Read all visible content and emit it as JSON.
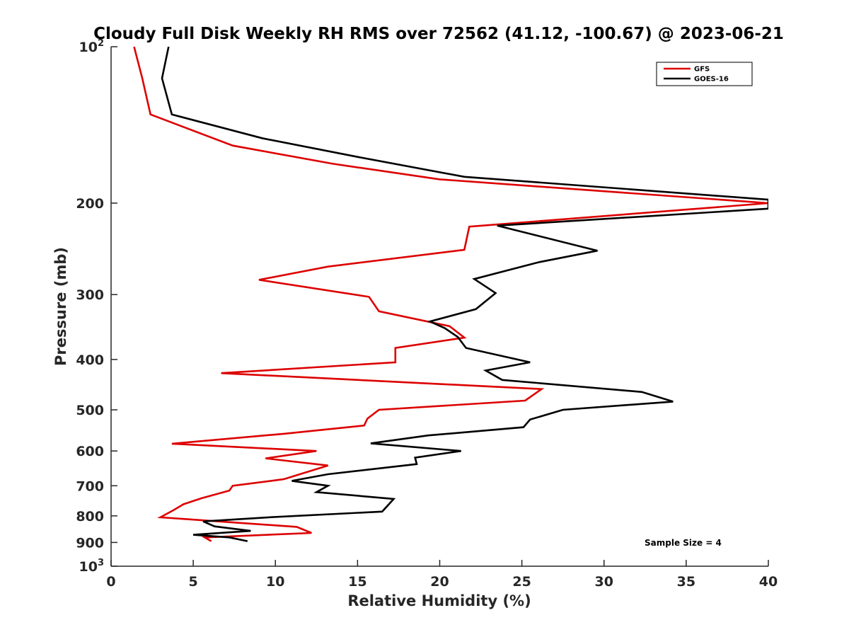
{
  "chart_data": {
    "type": "line",
    "title": "Cloudy Full Disk Weekly RH RMS over 72562 (41.12, -100.67) @ 2023-06-21",
    "xlabel": "Relative Humidity (%)",
    "ylabel": "Pressure (mb)",
    "xlim": [
      0,
      40
    ],
    "ylim": [
      100,
      1000
    ],
    "y_scale": "log",
    "y_reversed": true,
    "grid": false,
    "legend_position": "top-right",
    "x_ticks": [
      "0",
      "5",
      "10",
      "15",
      "20",
      "25",
      "30",
      "35",
      "40"
    ],
    "y_ticks": [
      {
        "value": 100,
        "base": "10",
        "exp": "2"
      },
      {
        "value": 200,
        "label": "200"
      },
      {
        "value": 300,
        "label": "300"
      },
      {
        "value": 400,
        "label": "400"
      },
      {
        "value": 500,
        "label": "500"
      },
      {
        "value": 600,
        "label": "600"
      },
      {
        "value": 700,
        "label": "700"
      },
      {
        "value": 800,
        "label": "800"
      },
      {
        "value": 900,
        "label": "900"
      },
      {
        "value": 1000,
        "base": "10",
        "exp": "3"
      }
    ],
    "annotation": "Sample Size = 4",
    "series": [
      {
        "name": "GFS",
        "color": "#dd0000",
        "points": [
          {
            "x": 1.4,
            "y": 100
          },
          {
            "x": 1.9,
            "y": 115
          },
          {
            "x": 2.4,
            "y": 135
          },
          {
            "x": 7.4,
            "y": 155
          },
          {
            "x": 13.5,
            "y": 168
          },
          {
            "x": 20.0,
            "y": 180
          },
          {
            "x": 40.0,
            "y": 200
          },
          {
            "x": 21.8,
            "y": 222
          },
          {
            "x": 21.5,
            "y": 246
          },
          {
            "x": 13.2,
            "y": 265
          },
          {
            "x": 9.0,
            "y": 281
          },
          {
            "x": 15.7,
            "y": 303
          },
          {
            "x": 16.3,
            "y": 323
          },
          {
            "x": 20.6,
            "y": 345
          },
          {
            "x": 21.5,
            "y": 363
          },
          {
            "x": 17.3,
            "y": 380
          },
          {
            "x": 17.3,
            "y": 405
          },
          {
            "x": 6.7,
            "y": 425
          },
          {
            "x": 26.2,
            "y": 456
          },
          {
            "x": 25.2,
            "y": 480
          },
          {
            "x": 16.3,
            "y": 500
          },
          {
            "x": 15.6,
            "y": 520
          },
          {
            "x": 15.4,
            "y": 536
          },
          {
            "x": 10.5,
            "y": 556
          },
          {
            "x": 3.7,
            "y": 581
          },
          {
            "x": 12.5,
            "y": 600
          },
          {
            "x": 9.4,
            "y": 620
          },
          {
            "x": 13.2,
            "y": 640
          },
          {
            "x": 10.5,
            "y": 680
          },
          {
            "x": 7.4,
            "y": 700
          },
          {
            "x": 7.2,
            "y": 715
          },
          {
            "x": 5.5,
            "y": 740
          },
          {
            "x": 4.4,
            "y": 760
          },
          {
            "x": 3.8,
            "y": 780
          },
          {
            "x": 3.0,
            "y": 805
          },
          {
            "x": 11.3,
            "y": 840
          },
          {
            "x": 12.2,
            "y": 863
          },
          {
            "x": 5.7,
            "y": 880
          },
          {
            "x": 6.1,
            "y": 895
          }
        ]
      },
      {
        "name": "GOES-16",
        "color": "#000000",
        "points": [
          {
            "x": 3.5,
            "y": 100
          },
          {
            "x": 3.1,
            "y": 115
          },
          {
            "x": 3.7,
            "y": 135
          },
          {
            "x": 9.2,
            "y": 150
          },
          {
            "x": 15.0,
            "y": 163
          },
          {
            "x": 21.5,
            "y": 178
          },
          {
            "x": 40.0,
            "y": 197
          },
          {
            "x": 40.0,
            "y": 205
          },
          {
            "x": 23.5,
            "y": 221
          },
          {
            "x": 29.6,
            "y": 247
          },
          {
            "x": 26.0,
            "y": 260
          },
          {
            "x": 22.1,
            "y": 280
          },
          {
            "x": 23.4,
            "y": 298
          },
          {
            "x": 22.2,
            "y": 320
          },
          {
            "x": 19.4,
            "y": 338
          },
          {
            "x": 20.3,
            "y": 348
          },
          {
            "x": 21.1,
            "y": 362
          },
          {
            "x": 21.6,
            "y": 380
          },
          {
            "x": 25.5,
            "y": 405
          },
          {
            "x": 22.8,
            "y": 420
          },
          {
            "x": 23.8,
            "y": 438
          },
          {
            "x": 32.3,
            "y": 462
          },
          {
            "x": 34.2,
            "y": 482
          },
          {
            "x": 27.5,
            "y": 500
          },
          {
            "x": 25.5,
            "y": 522
          },
          {
            "x": 25.1,
            "y": 540
          },
          {
            "x": 19.3,
            "y": 560
          },
          {
            "x": 15.8,
            "y": 580
          },
          {
            "x": 21.3,
            "y": 600
          },
          {
            "x": 18.5,
            "y": 618
          },
          {
            "x": 18.6,
            "y": 636
          },
          {
            "x": 13.2,
            "y": 665
          },
          {
            "x": 11.0,
            "y": 685
          },
          {
            "x": 13.2,
            "y": 700
          },
          {
            "x": 12.5,
            "y": 720
          },
          {
            "x": 17.2,
            "y": 742
          },
          {
            "x": 16.5,
            "y": 785
          },
          {
            "x": 9.6,
            "y": 805
          },
          {
            "x": 5.6,
            "y": 820
          },
          {
            "x": 6.3,
            "y": 838
          },
          {
            "x": 8.5,
            "y": 855
          },
          {
            "x": 5.0,
            "y": 870
          },
          {
            "x": 7.2,
            "y": 880
          },
          {
            "x": 8.3,
            "y": 895
          }
        ]
      }
    ]
  }
}
